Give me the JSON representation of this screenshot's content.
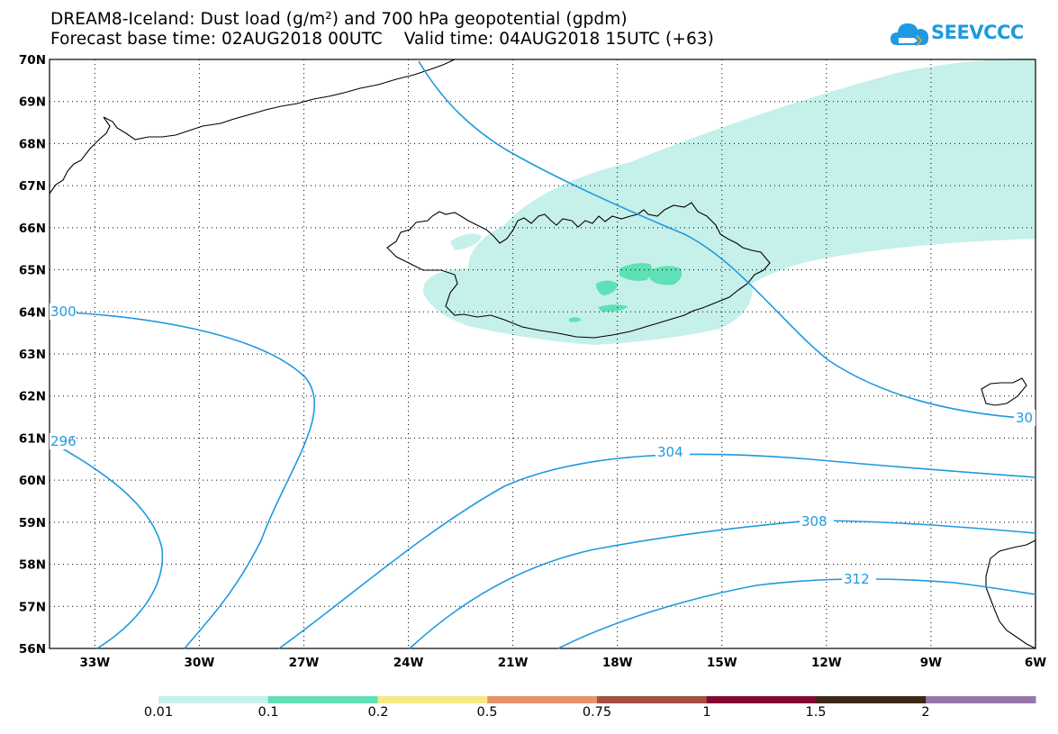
{
  "title_line1": "DREAM8-Iceland: Dust load (g/m²) and 700 hPa geopotential (gpdm)",
  "title_line2": "Forecast base time: 02AUG2018 00UTC    Valid time: 04AUG2018 15UTC (+63)",
  "logo_text": "SEEVCCC",
  "map": {
    "lat_labels": [
      "70N",
      "69N",
      "68N",
      "67N",
      "66N",
      "65N",
      "64N",
      "63N",
      "62N",
      "61N",
      "60N",
      "59N",
      "58N",
      "57N",
      "56N"
    ],
    "lon_labels": [
      "33W",
      "30W",
      "27W",
      "24W",
      "21W",
      "18W",
      "15W",
      "12W",
      "9W",
      "6W"
    ],
    "contour_labels": [
      "300",
      "296",
      "304",
      "308",
      "312",
      "30"
    ],
    "lat_range": [
      56,
      70
    ],
    "lon_range": [
      -34.3,
      -6
    ]
  },
  "colorbar": {
    "labels": [
      "0.01",
      "0.1",
      "0.2",
      "0.5",
      "0.75",
      "1",
      "1.5",
      "2"
    ],
    "colors": [
      "#c6f0ea",
      "#5fe0b6",
      "#f7e986",
      "#e8926a",
      "#a64f43",
      "#830834",
      "#3a2715",
      "#9777ab"
    ]
  },
  "colors": {
    "contour": "#1e9ae0",
    "dust_low": "#c6f0ea",
    "dust_mid": "#5fe0b6"
  }
}
